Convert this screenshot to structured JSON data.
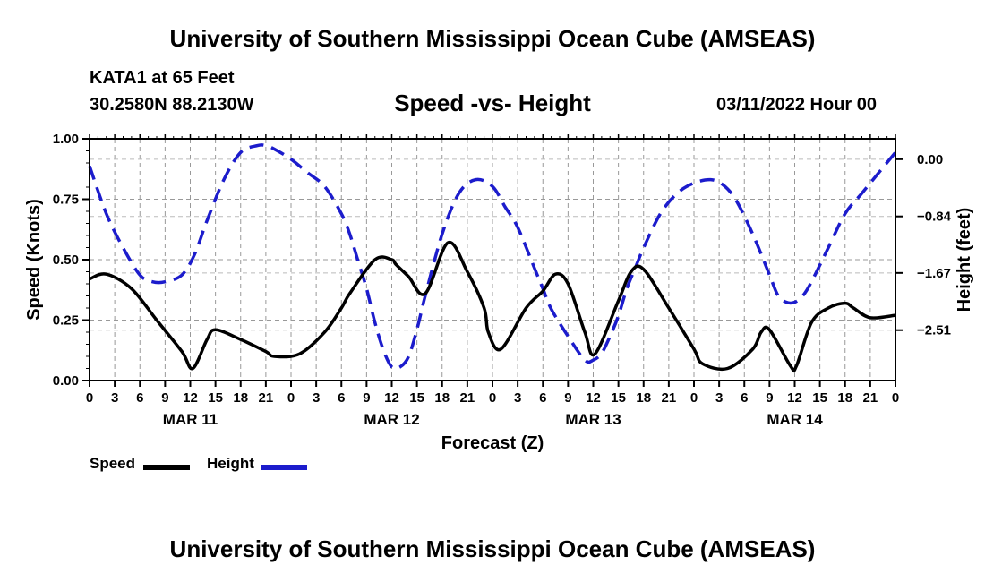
{
  "header": {
    "title": "University of Southern Mississippi Ocean Cube (AMSEAS)",
    "station": "KATA1 at 65 Feet",
    "coords": "30.2580N  88.2130W",
    "subtitle": "Speed -vs- Height",
    "date": "03/11/2022 Hour 00",
    "footer_title": "University of Southern Mississippi Ocean Cube (AMSEAS)"
  },
  "chart_data": {
    "type": "line",
    "title": "Speed -vs- Height",
    "xlabel": "Forecast (Z)",
    "ylabel": "Speed (Knots)",
    "y2label": "Height (feet)",
    "x_range": [
      0,
      96
    ],
    "x_tick_step": 3,
    "x_tick_labels": [
      "0",
      "3",
      "6",
      "9",
      "12",
      "15",
      "18",
      "21",
      "0",
      "3",
      "6",
      "9",
      "12",
      "15",
      "18",
      "21",
      "0",
      "3",
      "6",
      "9",
      "12",
      "15",
      "18",
      "21",
      "0",
      "3",
      "6",
      "9",
      "12",
      "15",
      "18",
      "21",
      "0"
    ],
    "date_labels": [
      {
        "x": 12,
        "label": "MAR 11"
      },
      {
        "x": 36,
        "label": "MAR 12"
      },
      {
        "x": 60,
        "label": "MAR 13"
      },
      {
        "x": 84,
        "label": "MAR 14"
      }
    ],
    "ylim": [
      0,
      1
    ],
    "y_ticks": [
      0,
      0.25,
      0.5,
      0.75,
      1.0
    ],
    "y_tick_labels": [
      "0.00",
      "0.25",
      "0.50",
      "0.75",
      "1.00"
    ],
    "y2lim": [
      -3.25,
      0.3
    ],
    "y2_ticks": [
      0,
      -0.84,
      -1.67,
      -2.51
    ],
    "y2_tick_labels": [
      "0.00",
      "−0.84",
      "−1.67",
      "−2.51"
    ],
    "series": [
      {
        "name": "Speed",
        "axis": "left",
        "color": "#000000",
        "dash": "solid",
        "x": [
          0,
          2,
          5,
          8,
          11,
          12.3,
          14,
          15,
          18,
          21,
          22,
          25,
          28,
          30,
          31,
          34,
          36,
          36.5,
          38,
          40,
          42.7,
          45,
          47,
          47.5,
          49,
          52,
          54,
          55.5,
          57,
          59,
          60.2,
          63,
          64.5,
          66,
          69,
          72,
          73,
          76,
          79,
          80,
          81,
          83.5,
          84.2,
          86,
          88,
          90,
          91,
          93,
          96
        ],
        "values": [
          0.42,
          0.44,
          0.38,
          0.25,
          0.12,
          0.05,
          0.17,
          0.21,
          0.17,
          0.12,
          0.1,
          0.11,
          0.2,
          0.3,
          0.36,
          0.5,
          0.5,
          0.48,
          0.43,
          0.36,
          0.57,
          0.45,
          0.3,
          0.2,
          0.13,
          0.3,
          0.37,
          0.44,
          0.4,
          0.2,
          0.11,
          0.33,
          0.45,
          0.46,
          0.3,
          0.13,
          0.07,
          0.05,
          0.13,
          0.2,
          0.21,
          0.06,
          0.06,
          0.24,
          0.3,
          0.32,
          0.3,
          0.26,
          0.27
        ]
      },
      {
        "name": "Height",
        "axis": "right",
        "color": "#1c1ccc",
        "dash": "dashed",
        "x": [
          0,
          2,
          4,
          6,
          7.5,
          9,
          11,
          12.5,
          14,
          16,
          18,
          20,
          21,
          22,
          24,
          26,
          28,
          30,
          31,
          32,
          33,
          34,
          35,
          36,
          37,
          38,
          39,
          40,
          42,
          44,
          46,
          48,
          49.5,
          51,
          53,
          54,
          55,
          57,
          59,
          60,
          61,
          62,
          63,
          64,
          65,
          66,
          68,
          70,
          72,
          74,
          75.5,
          77,
          79,
          81,
          82,
          83,
          84,
          85,
          86,
          88,
          90,
          92,
          94,
          96
        ],
        "values": [
          -0.1,
          -0.8,
          -1.3,
          -1.7,
          -1.8,
          -1.8,
          -1.7,
          -1.4,
          -0.9,
          -0.3,
          0.1,
          0.2,
          0.2,
          0.15,
          0.0,
          -0.2,
          -0.4,
          -0.8,
          -1.1,
          -1.5,
          -1.9,
          -2.4,
          -2.8,
          -3.05,
          -3.05,
          -2.9,
          -2.5,
          -2.0,
          -1.1,
          -0.5,
          -0.3,
          -0.4,
          -0.7,
          -1.0,
          -1.6,
          -1.9,
          -2.2,
          -2.6,
          -2.95,
          -2.95,
          -2.85,
          -2.6,
          -2.3,
          -1.9,
          -1.6,
          -1.3,
          -0.8,
          -0.5,
          -0.35,
          -0.3,
          -0.38,
          -0.6,
          -1.1,
          -1.7,
          -2.0,
          -2.1,
          -2.1,
          -2.0,
          -1.8,
          -1.3,
          -0.8,
          -0.5,
          -0.2,
          0.1
        ]
      }
    ],
    "legend": [
      {
        "label": "Speed",
        "color": "#000000"
      },
      {
        "label": "Height",
        "color": "#1c1ccc"
      }
    ],
    "grid": true
  }
}
